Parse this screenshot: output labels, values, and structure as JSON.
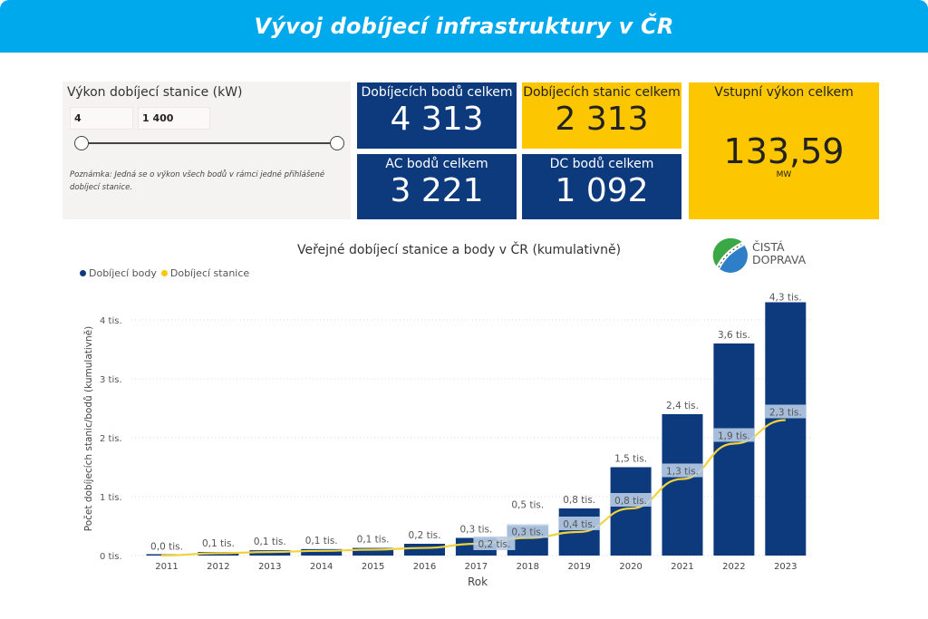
{
  "header": {
    "title": "Vývoj dobíjecí infrastruktury v ČR"
  },
  "slicer": {
    "title": "Výkon dobíjecí stanice (kW)",
    "min_value": "4",
    "max_value": "1 400",
    "range_selected": [
      0,
      1
    ],
    "note": "Poznámka: Jedná se o výkon všech bodů v rámci jedné přihlášené dobíjecí stanice."
  },
  "cards": {
    "points_total": {
      "label": "Dobíjecích bodů celkem",
      "value": "4 313"
    },
    "stations_total": {
      "label": "Dobíjecích stanic celkem",
      "value": "2 313"
    },
    "ac_total": {
      "label": "AC bodů celkem",
      "value": "3 221"
    },
    "dc_total": {
      "label": "DC bodů celkem",
      "value": "1 092"
    },
    "power_total": {
      "label": "Vstupní výkon celkem",
      "value": "133,59",
      "unit": "MW"
    }
  },
  "logo": {
    "line1": "ČISTÁ",
    "line2": "DOPRAVA",
    "icon": "leaf-road-logo-icon"
  },
  "colors": {
    "header": "#00a8ec",
    "navy": "#0d3a7d",
    "yellow": "#fcc600",
    "line": "#f2d23c",
    "label_bg": "#b8cde4"
  },
  "chart_data": {
    "type": "bar",
    "title": "Veřejné dobíjecí stanice a body v ČR (kumulativně)",
    "xlabel": "Rok",
    "ylabel": "Počet dobíjecích stanic/bodů (kumulativně)",
    "ylim": [
      0,
      4.4
    ],
    "yticks": [
      0,
      1,
      2,
      3,
      4
    ],
    "ytick_labels": [
      "0 tis.",
      "1 tis.",
      "2 tis.",
      "3 tis.",
      "4 tis."
    ],
    "grid": true,
    "legend": {
      "position": "top-left",
      "entries": [
        "Dobíjecí body",
        "Dobíjecí stanice"
      ]
    },
    "categories": [
      "2011",
      "2012",
      "2013",
      "2014",
      "2015",
      "2016",
      "2017",
      "2018",
      "2019",
      "2020",
      "2021",
      "2022",
      "2023"
    ],
    "series": [
      {
        "name": "Dobíjecí body",
        "kind": "bar",
        "unit": "tis.",
        "values": [
          0.01,
          0.06,
          0.09,
          0.11,
          0.13,
          0.2,
          0.3,
          0.5,
          0.8,
          1.5,
          2.4,
          3.6,
          4.3
        ],
        "labels": [
          "0,0 tis.",
          "0,1 tis.",
          "0,1 tis.",
          "0,1 tis.",
          "0,1 tis.",
          "0,2 tis.",
          "0,3 tis.",
          "0,5 tis.",
          "0,8 tis.",
          "1,5 tis.",
          "2,4 tis.",
          "3,6 tis.",
          "4,3 tis."
        ]
      },
      {
        "name": "Dobíjecí stanice",
        "kind": "line",
        "unit": "tis.",
        "values": [
          0.0,
          0.04,
          0.06,
          0.08,
          0.1,
          0.13,
          0.2,
          0.3,
          0.4,
          0.8,
          1.3,
          1.9,
          2.3
        ],
        "labels": [
          "",
          "",
          "",
          "",
          "",
          "",
          "0,2 tis.",
          "0,3 tis.",
          "0,4 tis.",
          "0,8 tis.",
          "1,3 tis.",
          "1,9 tis.",
          "2,3 tis."
        ]
      }
    ]
  }
}
